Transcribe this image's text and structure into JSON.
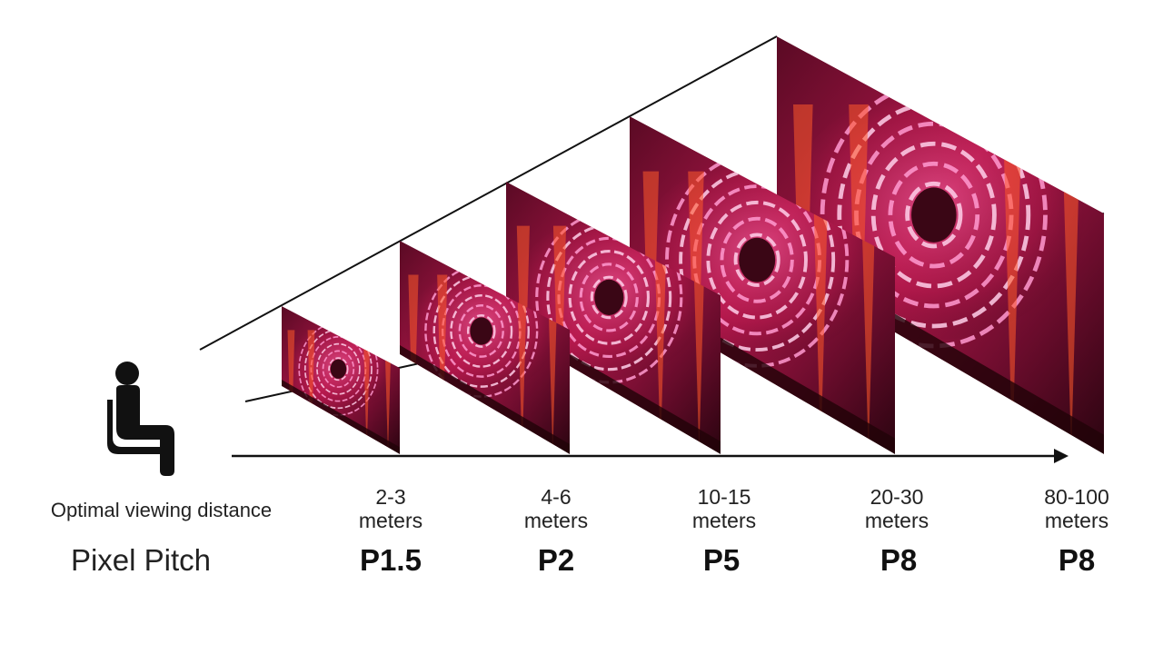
{
  "labels": {
    "distance_row": "Optimal viewing distance",
    "pitch_row": "Pixel Pitch"
  },
  "screens": [
    {
      "distance": "2-3",
      "unit": "meters",
      "pitch": "P1.5"
    },
    {
      "distance": "4-6",
      "unit": "meters",
      "pitch": "P2"
    },
    {
      "distance": "10-15",
      "unit": "meters",
      "pitch": "P5"
    },
    {
      "distance": "20-30",
      "unit": "meters",
      "pitch": "P8"
    },
    {
      "distance": "80-100",
      "unit": "meters",
      "pitch": "P8"
    }
  ],
  "colors": {
    "screen_dark": "#3a0615",
    "screen_mid": "#b0174a",
    "screen_hot": "#ff5a2a",
    "ring": "#ff9ad0",
    "line": "#111111"
  },
  "icons": {
    "viewer": "seated-person-icon",
    "axis": "arrow-right-icon"
  }
}
